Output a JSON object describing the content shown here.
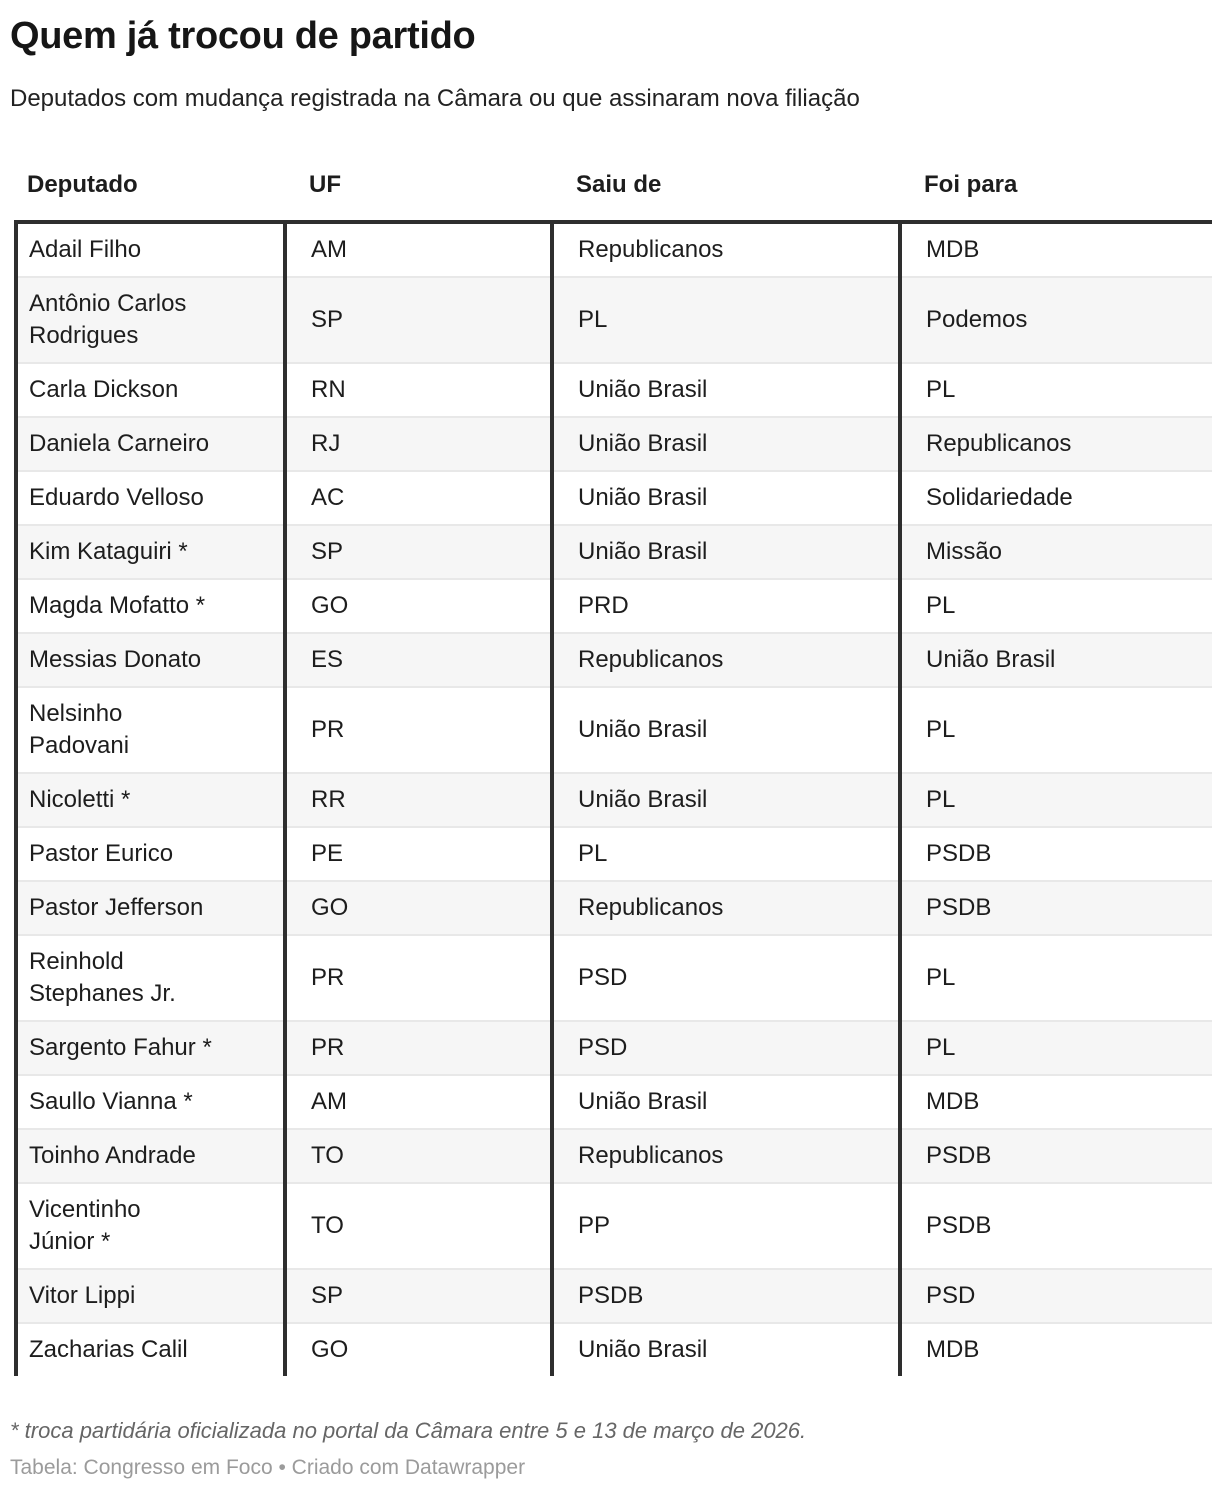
{
  "chart_data": {
    "type": "table",
    "title": "Quem já trocou de partido",
    "subtitle": "Deputados com mudança registrada na Câmara ou que assinaram nova filiação",
    "columns": [
      "Deputado",
      "UF",
      "Saiu de",
      "Foi para"
    ],
    "rows": [
      [
        "Adail Filho",
        "AM",
        "Republicanos",
        "MDB"
      ],
      [
        "Antônio Carlos\nRodrigues",
        "SP",
        "PL",
        "Podemos"
      ],
      [
        "Carla Dickson",
        "RN",
        "União Brasil",
        "PL"
      ],
      [
        "Daniela Carneiro",
        "RJ",
        "União Brasil",
        "Republicanos"
      ],
      [
        "Eduardo Velloso",
        "AC",
        "União Brasil",
        "Solidariedade"
      ],
      [
        "Kim Kataguiri *",
        "SP",
        "União Brasil",
        "Missão"
      ],
      [
        "Magda Mofatto *",
        "GO",
        "PRD",
        "PL"
      ],
      [
        "Messias Donato",
        "ES",
        "Republicanos",
        "União Brasil"
      ],
      [
        "Nelsinho\nPadovani",
        "PR",
        "União Brasil",
        "PL"
      ],
      [
        "Nicoletti *",
        "RR",
        "União Brasil",
        "PL"
      ],
      [
        "Pastor Eurico",
        "PE",
        "PL",
        "PSDB"
      ],
      [
        "Pastor Jefferson",
        "GO",
        "Republicanos",
        "PSDB"
      ],
      [
        "Reinhold\nStephanes Jr.",
        "PR",
        "PSD",
        "PL"
      ],
      [
        "Sargento Fahur *",
        "PR",
        "PSD",
        "PL"
      ],
      [
        "Saullo Vianna *",
        "AM",
        "União Brasil",
        "MDB"
      ],
      [
        "Toinho Andrade",
        "TO",
        "Republicanos",
        "PSDB"
      ],
      [
        "Vicentinho\nJúnior *",
        "TO",
        "PP",
        "PSDB"
      ],
      [
        "Vitor Lippi",
        "SP",
        "PSDB",
        "PSD"
      ],
      [
        "Zacharias Calil",
        "GO",
        "União Brasil",
        "MDB"
      ]
    ],
    "layout_hints": {
      "striped_rows": true,
      "vertical_column_borders": true,
      "thick_top_border": true
    }
  },
  "footer": {
    "footnote": "* troca partidária oficializada no portal da Câmara entre 5 e 13 de março de 2026.",
    "attribution": "Tabela: Congresso em Foco • Criado com Datawrapper"
  },
  "colors": {
    "background": "#ffffff",
    "text": "#1d1d1d",
    "border_dark": "#2e2e2e",
    "row_stripe": "#f6f6f6",
    "row_separator": "#e8e8e8",
    "footnote_text": "#666666",
    "attribution_text": "#9b9b9b"
  }
}
